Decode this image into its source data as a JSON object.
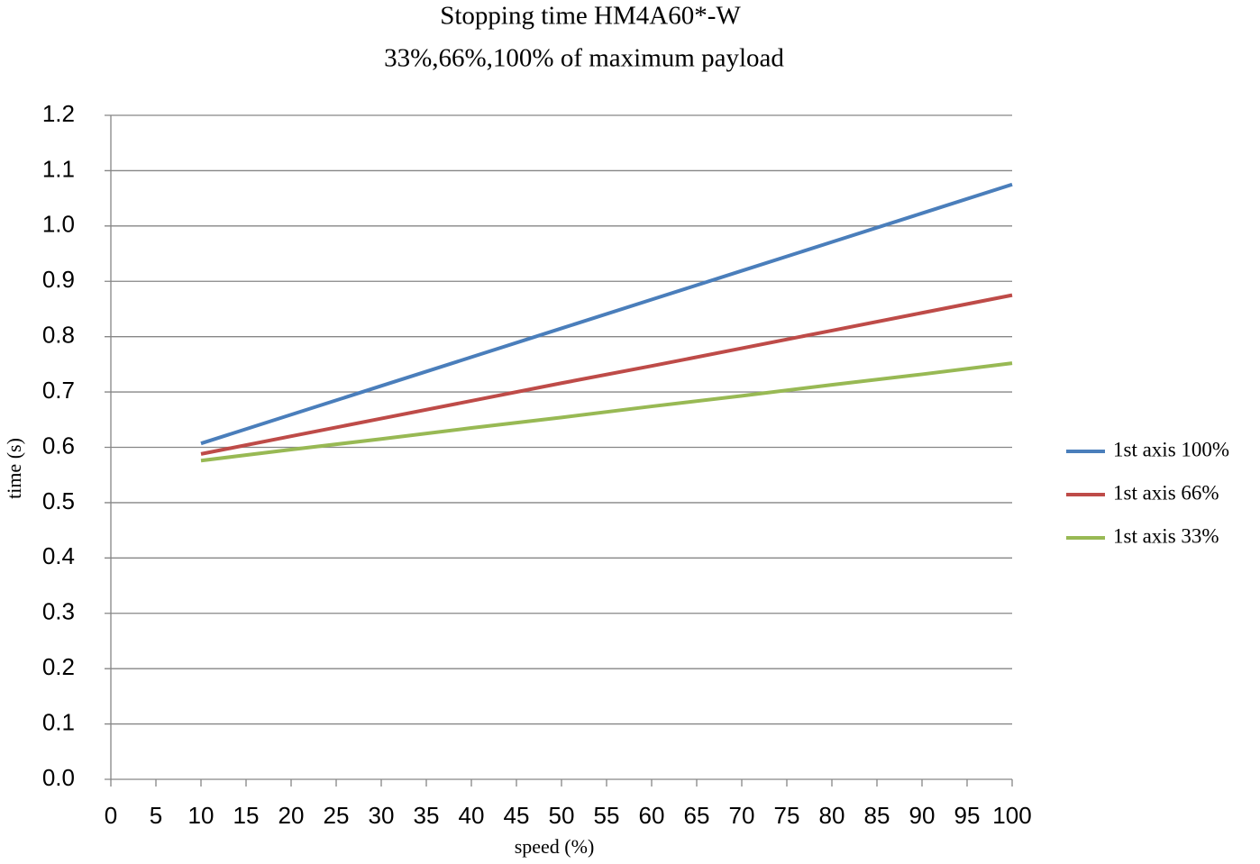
{
  "chart_data": {
    "type": "line",
    "title": "Stopping time HM4A60*-W",
    "subtitle": "33%,66%,100% of maximum payload",
    "x_label": "speed (%)",
    "y_label": "time (s)",
    "x": [
      10,
      20,
      30,
      40,
      50,
      60,
      70,
      80,
      90,
      100
    ],
    "series": [
      {
        "name": "1st axis 100%",
        "color": "#4a7ebb",
        "values": [
          0.607,
          0.659,
          0.711,
          0.763,
          0.815,
          0.867,
          0.919,
          0.971,
          1.023,
          1.075
        ]
      },
      {
        "name": "1st axis 66%",
        "color": "#be4b48",
        "values": [
          0.588,
          0.62,
          0.652,
          0.684,
          0.716,
          0.747,
          0.779,
          0.811,
          0.843,
          0.875
        ]
      },
      {
        "name": "1st axis 33%",
        "color": "#98b954",
        "values": [
          0.576,
          0.596,
          0.615,
          0.635,
          0.654,
          0.674,
          0.693,
          0.713,
          0.732,
          0.752
        ]
      }
    ],
    "xlim": [
      0,
      100
    ],
    "xticks": [
      0,
      5,
      10,
      15,
      20,
      25,
      30,
      35,
      40,
      45,
      50,
      55,
      60,
      65,
      70,
      75,
      80,
      85,
      90,
      95,
      100
    ],
    "ylim": [
      0,
      1.2
    ],
    "yticks": [
      {
        "value": 0,
        "label": "0.0"
      },
      0.1,
      0.2,
      0.3,
      0.4,
      0.5,
      0.6,
      0.7,
      0.8,
      0.9,
      {
        "value": 1,
        "label": "1.0"
      },
      1.1,
      1.2
    ],
    "grid": true,
    "legend": "right"
  }
}
